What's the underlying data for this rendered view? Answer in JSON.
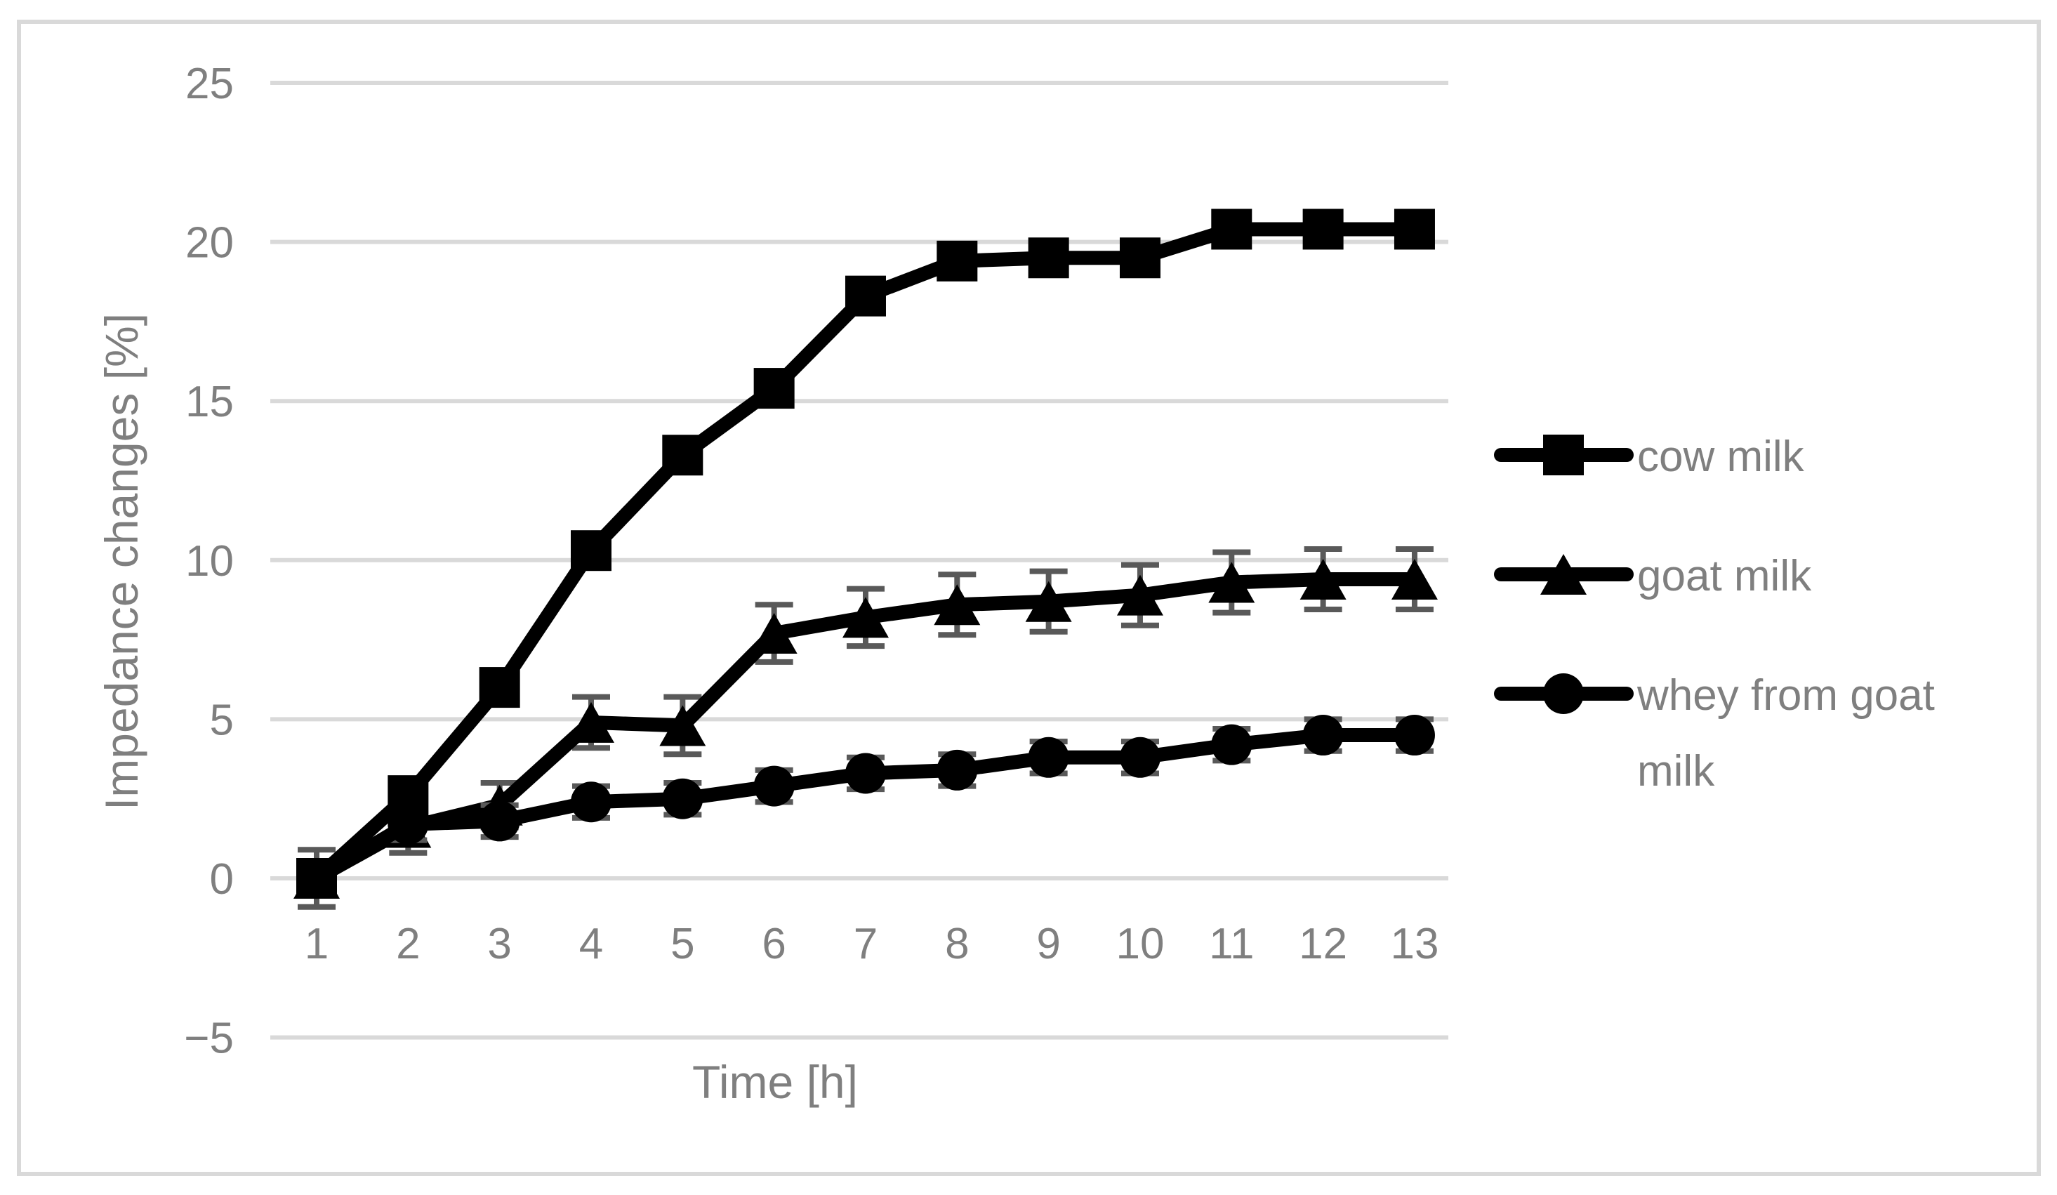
{
  "figure": {
    "background": "#ffffff",
    "border_color": "#d9d9d9"
  },
  "chart_data": {
    "type": "line",
    "title": "",
    "xlabel": "Time [h]",
    "ylabel": "Impedance changes [%]",
    "x": [
      1,
      2,
      3,
      4,
      5,
      6,
      7,
      8,
      9,
      10,
      11,
      12,
      13
    ],
    "xticks": [
      "1",
      "2",
      "3",
      "4",
      "5",
      "6",
      "7",
      "8",
      "9",
      "10",
      "11",
      "12",
      "13"
    ],
    "yticks": [
      "25",
      "20",
      "15",
      "10",
      "5",
      "0",
      "−5"
    ],
    "ytick_values": [
      25,
      20,
      15,
      10,
      5,
      0,
      -5
    ],
    "ylim": [
      -5,
      25
    ],
    "grid": "horizontal",
    "gridline_color": "#d9d9d9",
    "axis_text_color": "#7f7f7f",
    "error_bar_color": "#595959",
    "legend_position": "right",
    "series": [
      {
        "name": "cow milk",
        "marker": "square",
        "color": "#000000",
        "values": [
          0.0,
          2.6,
          6.0,
          10.3,
          13.3,
          15.4,
          18.3,
          19.4,
          19.5,
          19.5,
          20.4,
          20.4,
          20.4
        ],
        "errors": [
          0.9,
          0,
          0,
          0,
          0,
          0,
          0,
          0,
          0,
          0,
          0,
          0,
          0
        ]
      },
      {
        "name": "goat milk",
        "marker": "triangle",
        "color": "#000000",
        "values": [
          0.0,
          1.6,
          2.3,
          4.9,
          4.8,
          7.7,
          8.2,
          8.6,
          8.7,
          8.9,
          9.3,
          9.4,
          9.4
        ],
        "errors": [
          0,
          0.8,
          0.7,
          0.8,
          0.9,
          0.9,
          0.9,
          0.95,
          0.95,
          0.95,
          0.95,
          0.95,
          0.95
        ]
      },
      {
        "name": "whey from goat milk",
        "marker": "circle",
        "color": "#000000",
        "values": [
          0.0,
          1.7,
          1.8,
          2.4,
          2.5,
          2.9,
          3.3,
          3.4,
          3.8,
          3.8,
          4.2,
          4.5,
          4.5
        ],
        "errors": [
          0,
          0.5,
          0.5,
          0.5,
          0.5,
          0.5,
          0.5,
          0.5,
          0.5,
          0.5,
          0.5,
          0.5,
          0.5
        ]
      }
    ],
    "legend_wrap": {
      "2": [
        "whey from goat",
        "milk"
      ]
    }
  }
}
